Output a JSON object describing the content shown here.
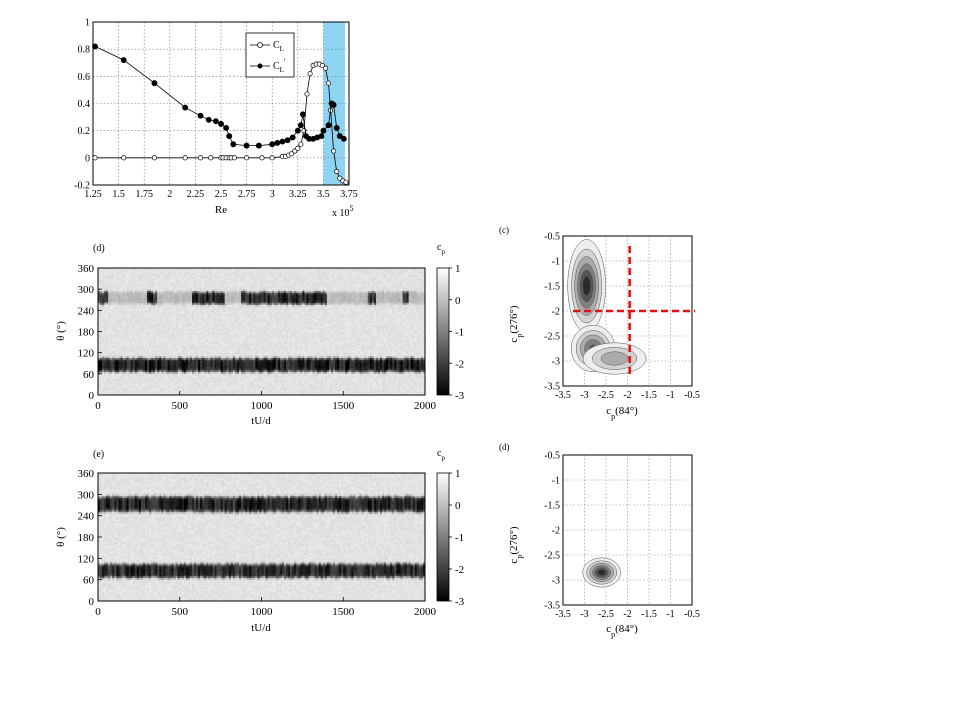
{
  "chart_data": [
    {
      "id": "top",
      "type": "line",
      "xlabel": "Re",
      "x_multiplier": "x 10",
      "x_multiplier_exp": "5",
      "xlim": [
        1.25,
        3.75
      ],
      "ylim": [
        -0.2,
        1
      ],
      "xticks": [
        "1.25",
        "1.5",
        "1.75",
        "2",
        "2.25",
        "2.5",
        "2.75",
        "3",
        "3.25",
        "3.5",
        "3.75"
      ],
      "yticks": [
        "-0.2",
        "0",
        "0.2",
        "0.4",
        "0.6",
        "0.8",
        "1"
      ],
      "grid": true,
      "legend_position": "top-right",
      "highlight_band": {
        "x": [
          3.5,
          3.71
        ],
        "color": "#8fd3f2"
      },
      "series": [
        {
          "name": "C",
          "name_sub": "L",
          "marker": "open-circle",
          "x": [
            1.27,
            1.55,
            1.85,
            2.15,
            2.3,
            2.4,
            2.5,
            2.52,
            2.55,
            2.58,
            2.6,
            2.63,
            2.75,
            2.9,
            3.0,
            3.1,
            3.13,
            3.16,
            3.19,
            3.22,
            3.25,
            3.28,
            3.31,
            3.34,
            3.37,
            3.4,
            3.43,
            3.46,
            3.49,
            3.52,
            3.55,
            3.57,
            3.6,
            3.63,
            3.66,
            3.69,
            3.72
          ],
          "y": [
            0.0,
            0.0,
            0.0,
            0.0,
            0.0,
            0.0,
            0.0,
            0.0,
            0.0,
            0.0,
            0.0,
            0.0,
            0.0,
            0.0,
            0.0,
            0.01,
            0.01,
            0.02,
            0.03,
            0.05,
            0.07,
            0.1,
            0.2,
            0.47,
            0.62,
            0.68,
            0.69,
            0.69,
            0.68,
            0.66,
            0.55,
            0.35,
            0.05,
            -0.1,
            -0.15,
            -0.17,
            -0.18
          ]
        },
        {
          "name": "C",
          "name_sub": "L",
          "name_sup": "'",
          "marker": "filled-circle",
          "x": [
            1.27,
            1.55,
            1.85,
            2.15,
            2.3,
            2.38,
            2.45,
            2.5,
            2.55,
            2.58,
            2.62,
            2.75,
            2.87,
            3.0,
            3.05,
            3.1,
            3.15,
            3.2,
            3.25,
            3.28,
            3.3,
            3.33,
            3.36,
            3.4,
            3.44,
            3.48,
            3.5,
            3.55,
            3.58,
            3.6,
            3.63,
            3.66,
            3.7
          ],
          "y": [
            0.82,
            0.72,
            0.55,
            0.37,
            0.31,
            0.28,
            0.27,
            0.25,
            0.22,
            0.16,
            0.1,
            0.09,
            0.09,
            0.1,
            0.11,
            0.12,
            0.13,
            0.15,
            0.2,
            0.24,
            0.32,
            0.16,
            0.14,
            0.14,
            0.15,
            0.16,
            0.2,
            0.24,
            0.4,
            0.39,
            0.22,
            0.16,
            0.14
          ]
        }
      ]
    },
    {
      "id": "d",
      "type": "heatmap",
      "panel_label": "(d)",
      "xlabel": "tU/d",
      "ylabel": "θ (°)",
      "xlim": [
        0,
        2000
      ],
      "ylim": [
        0,
        360
      ],
      "xticks": [
        "0",
        "500",
        "1000",
        "1500",
        "2000"
      ],
      "yticks": [
        "0",
        "60",
        "120",
        "180",
        "240",
        "300",
        "360"
      ],
      "colorbar_label": "c",
      "colorbar_label_sub": "p",
      "colorbar_ticks": [
        "1",
        "0",
        "-1",
        "-2",
        "-3"
      ],
      "clim": [
        -3,
        1
      ],
      "bands": [
        {
          "theta_center": 85,
          "theta_halfwidth": 20,
          "value": -2.6,
          "continuous": true
        },
        {
          "theta_center": 275,
          "theta_halfwidth": 18,
          "value": -2.4,
          "continuous": false,
          "active_intervals": [
            [
              0,
              60
            ],
            [
              300,
              360
            ],
            [
              580,
              780
            ],
            [
              880,
              1400
            ],
            [
              1650,
              1700
            ],
            [
              1860,
              1900
            ]
          ]
        }
      ]
    },
    {
      "id": "e",
      "type": "heatmap",
      "panel_label": "(e)",
      "xlabel": "tU/d",
      "ylabel": "θ (°)",
      "xlim": [
        0,
        2000
      ],
      "ylim": [
        0,
        360
      ],
      "xticks": [
        "0",
        "500",
        "1000",
        "1500",
        "2000"
      ],
      "yticks": [
        "0",
        "60",
        "120",
        "180",
        "240",
        "300",
        "360"
      ],
      "colorbar_label": "c",
      "colorbar_label_sub": "p",
      "colorbar_ticks": [
        "1",
        "0",
        "-1",
        "-2",
        "-3"
      ],
      "clim": [
        -3,
        1
      ],
      "bands": [
        {
          "theta_center": 85,
          "theta_halfwidth": 20,
          "value": -2.4,
          "continuous": true
        },
        {
          "theta_center": 272,
          "theta_halfwidth": 22,
          "value": -2.5,
          "continuous": true
        }
      ]
    },
    {
      "id": "c",
      "type": "contour",
      "panel_label": "(c)",
      "xlabel": "c",
      "xlabel_sub": "p",
      "xlabel_tail": "(84°)",
      "ylabel": "c",
      "ylabel_sub": "p",
      "ylabel_tail": "(276°)",
      "xlim": [
        -3.5,
        -0.5
      ],
      "ylim": [
        -3.5,
        -0.5
      ],
      "xticks": [
        "-3.5",
        "-3",
        "-2.5",
        "-2",
        "-1.5",
        "-1",
        "-0.5"
      ],
      "yticks": [
        "-3.5",
        "-3",
        "-2.5",
        "-2",
        "-1.5",
        "-1",
        "-0.5"
      ],
      "grid": true,
      "dashed_crosshair": {
        "x": -1.95,
        "y": -2.0,
        "color": "#e01010"
      },
      "density_peaks": [
        {
          "x": -2.95,
          "y": -1.5,
          "sx": 0.18,
          "sy": 0.38,
          "weight": 1.0
        },
        {
          "x": -2.8,
          "y": -2.75,
          "sx": 0.22,
          "sy": 0.2,
          "weight": 0.75
        },
        {
          "x": -2.3,
          "y": -2.95,
          "sx": 0.35,
          "sy": 0.15,
          "weight": 0.45
        }
      ]
    },
    {
      "id": "d2",
      "type": "contour",
      "panel_label": "(d)",
      "xlabel": "c",
      "xlabel_sub": "p",
      "xlabel_tail": "(84°)",
      "ylabel": "c",
      "ylabel_sub": "p",
      "ylabel_tail": "(276°)",
      "xlim": [
        -3.5,
        -0.5
      ],
      "ylim": [
        -3.5,
        -0.5
      ],
      "xticks": [
        "-3.5",
        "-3",
        "-2.5",
        "-2",
        "-1.5",
        "-1",
        "-0.5"
      ],
      "yticks": [
        "-3.5",
        "-3",
        "-2.5",
        "-2",
        "-1.5",
        "-1",
        "-0.5"
      ],
      "grid": true,
      "density_peaks": [
        {
          "x": -2.6,
          "y": -2.85,
          "sx": 0.18,
          "sy": 0.12,
          "weight": 1.0
        }
      ]
    }
  ]
}
